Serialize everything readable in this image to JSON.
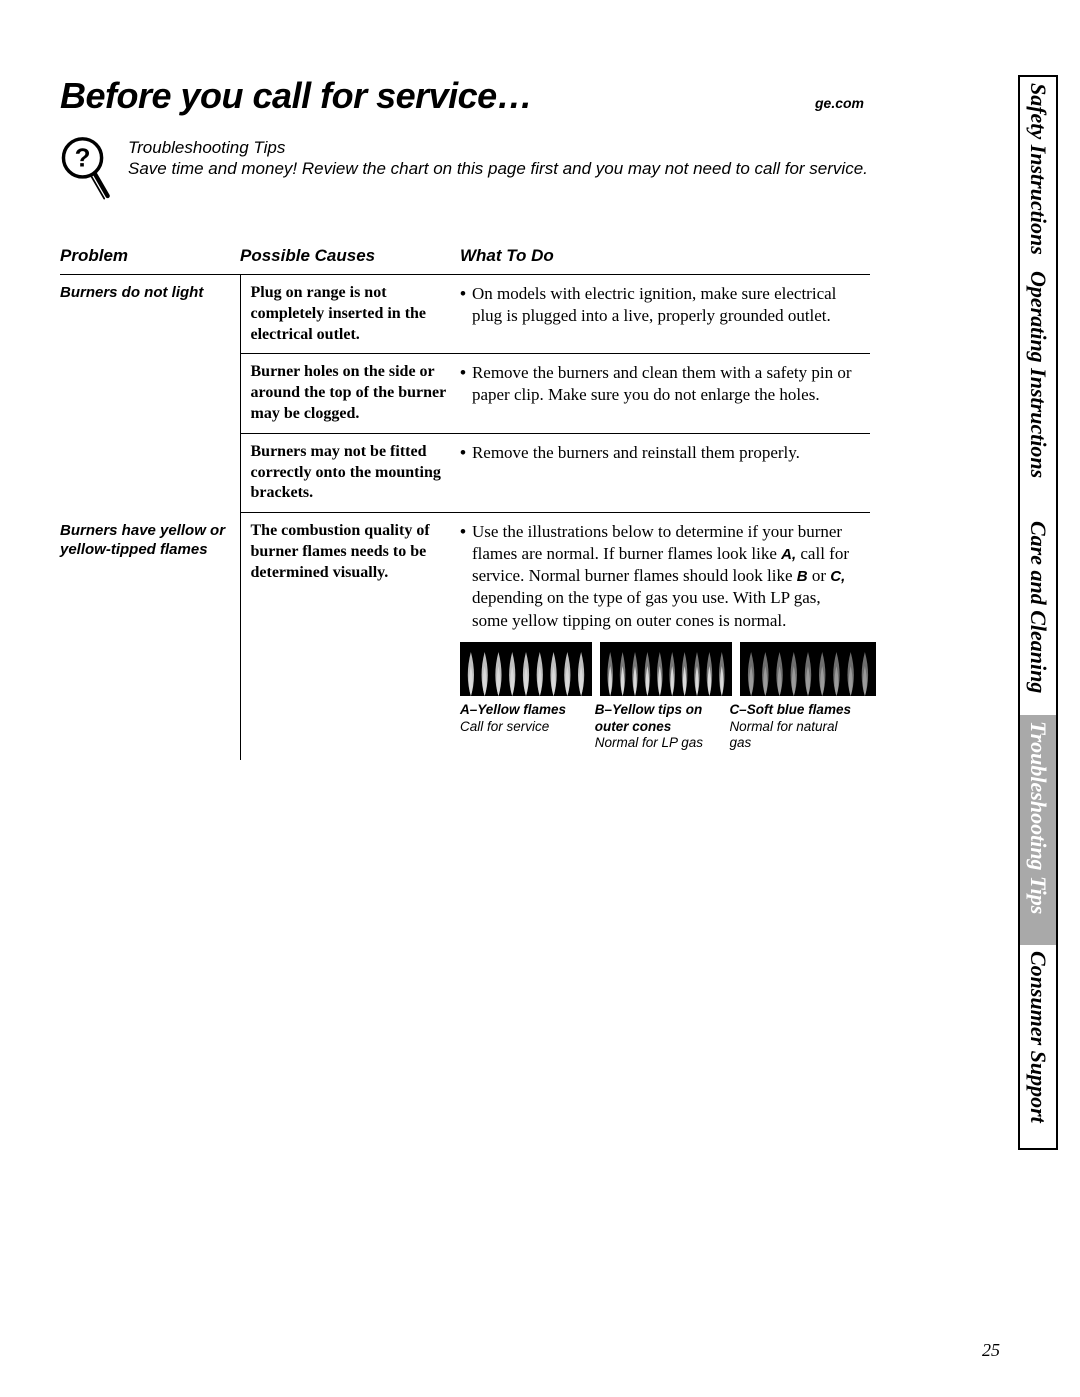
{
  "header": {
    "title": "Before you call for service…",
    "site": "ge.com"
  },
  "intro": {
    "title": "Troubleshooting Tips",
    "body": "Save time and money! Review the chart on this page first and you may not need to call for service."
  },
  "columns": {
    "problem": "Problem",
    "causes": "Possible Causes",
    "what": "What To Do"
  },
  "rows": [
    {
      "problem": "Burners do not light",
      "cause": "Plug on range is not completely inserted in the electrical outlet.",
      "what": "On models with electric ignition, make sure electrical plug is plugged into a live, properly grounded outlet."
    },
    {
      "problem": "",
      "cause": "Burner holes on the side or around the top of the burner may be clogged.",
      "what": "Remove the burners and clean them with a safety pin or paper clip. Make sure you do not enlarge the holes."
    },
    {
      "problem": "",
      "cause": "Burners may not be fitted correctly onto the mounting brackets.",
      "what": "Remove the burners and reinstall them properly."
    },
    {
      "problem": "Burners have yellow or yellow-tipped flames",
      "cause": "The combustion quality of burner flames needs to be determined visually.",
      "what_pre": "Use the illustrations below to determine if your burner flames are normal. If burner flames look like ",
      "what_a": "A,",
      "what_mid": " call for service. Normal burner flames should look like ",
      "what_b": "B",
      "what_or": " or ",
      "what_c": "C,",
      "what_post": " depending on the type of gas you use. With LP gas, some yellow tipping on outer cones is normal."
    }
  ],
  "flames": {
    "a": {
      "title": "A–Yellow flames",
      "sub": "Call for service",
      "count": 9,
      "inner": "#d9d9d9",
      "outer": "#bfbfbf"
    },
    "b": {
      "title": "B–Yellow tips on outer cones",
      "sub": "Normal for LP gas",
      "count": 10,
      "inner": "#d9d9d9",
      "outer": "#777777"
    },
    "c": {
      "title": "C–Soft blue flames",
      "sub": "Normal for natural gas",
      "count": 9,
      "inner": "#9a9a9a",
      "outer": "#6e6e6e"
    }
  },
  "tabs": [
    {
      "label": "Safety Instructions",
      "active": false
    },
    {
      "label": "Operating Instructions",
      "active": false
    },
    {
      "label": "Care and Cleaning",
      "active": false
    },
    {
      "label": "Troubleshooting Tips",
      "active": true
    },
    {
      "label": "Consumer Support",
      "active": false
    }
  ],
  "page_number": "25",
  "colors": {
    "text": "#000000",
    "background": "#ffffff",
    "active_tab_bg": "#a9a9a9",
    "active_tab_fg": "#ffffff",
    "rule": "#000000"
  },
  "fonts": {
    "heading_family": "Arial",
    "body_family": "Times New Roman",
    "title_pt": 27,
    "intro_pt": 13,
    "th_pt": 13,
    "cause_pt": 12,
    "what_pt": 13,
    "tab_pt": 17,
    "caption_pt": 10
  }
}
